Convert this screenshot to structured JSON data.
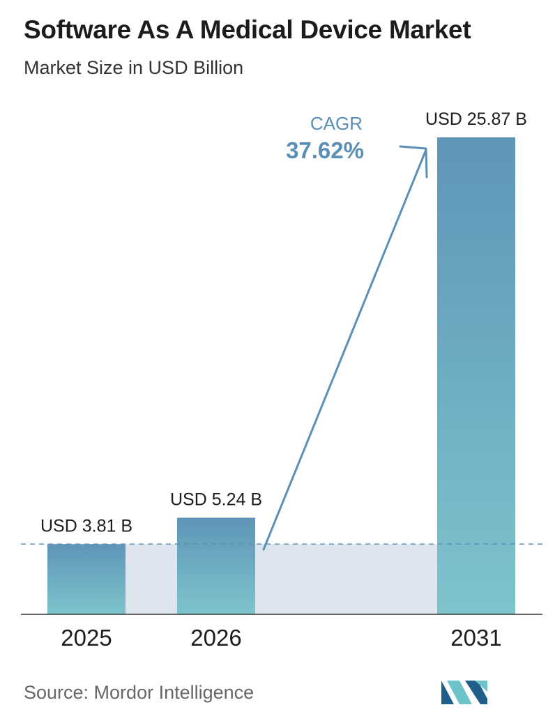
{
  "title": "Software As A Medical Device Market",
  "subtitle": "Market Size in USD Billion",
  "source": "Source:  Mordor Intelligence",
  "cagr": {
    "label": "CAGR",
    "value": "37.62%"
  },
  "colors": {
    "bar_top": "#5f95b8",
    "bar_bottom": "#7dc4cc",
    "band": "#dde6ef",
    "accent": "#5b8fb5",
    "title": "#1c1c1c",
    "source": "#666666",
    "logo_dark": "#1f5f8a",
    "logo_light": "#6cc3c9"
  },
  "chart_data": {
    "type": "bar",
    "categories": [
      "2025",
      "2026",
      "2031"
    ],
    "values": [
      3.81,
      5.24,
      25.87
    ],
    "data_labels": [
      "USD 3.81 B",
      "USD 5.24 B",
      "USD 25.87 B"
    ],
    "title": "Software As A Medical Device Market",
    "subtitle": "Market Size in USD Billion",
    "xlabel": "",
    "ylabel": "",
    "ylim": [
      0,
      25.87
    ],
    "grid": false,
    "legend": "none",
    "reference_line_value": 3.81
  }
}
